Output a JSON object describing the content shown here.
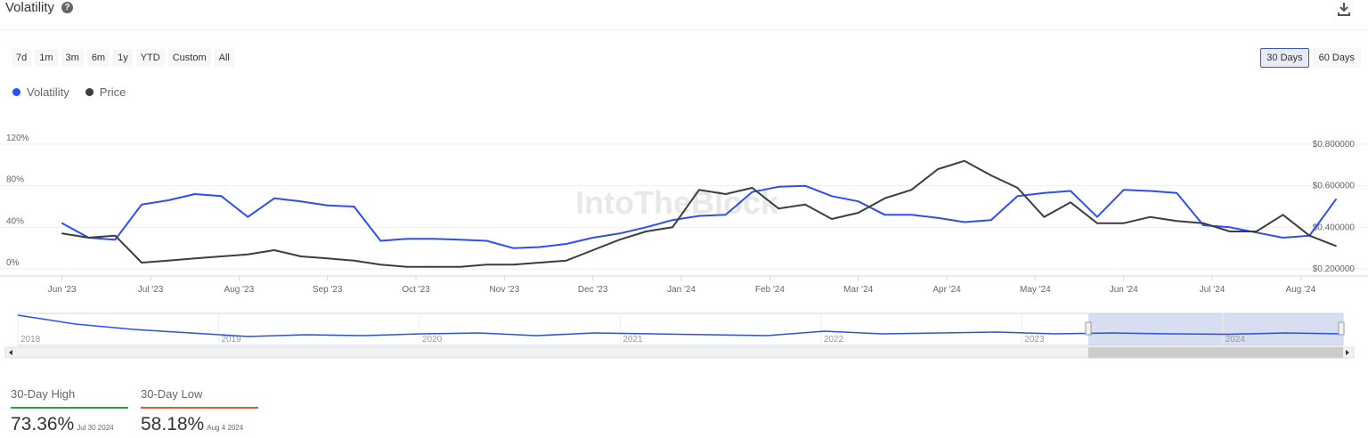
{
  "header": {
    "title": "Volatility",
    "help_icon": "question-circle-icon",
    "download_icon": "download-icon"
  },
  "range_buttons": [
    "7d",
    "1m",
    "3m",
    "6m",
    "1y",
    "YTD",
    "Custom",
    "All"
  ],
  "period_buttons": [
    {
      "label": "30 Days",
      "active": true
    },
    {
      "label": "60 Days",
      "active": false
    }
  ],
  "legend": [
    {
      "label": "Volatility",
      "color": "#2c4ef5"
    },
    {
      "label": "Price",
      "color": "#3d3d3d"
    }
  ],
  "colors": {
    "volatility": "#2c4ef5",
    "price": "#3d3d3d",
    "high": "#2ea043",
    "low": "#e05a36",
    "navigator_fill": "#ccd6eb"
  },
  "chart_data": {
    "type": "line",
    "x_tick_labels": [
      "Jun '23",
      "Jul '23",
      "Aug '23",
      "Sep '23",
      "Oct '23",
      "Nov '23",
      "Dec '23",
      "Jan '24",
      "Feb '24",
      "Mar '24",
      "Apr '24",
      "May '24",
      "Jun '24",
      "Jul '24",
      "Aug '24"
    ],
    "y_left": {
      "ticks": [
        "0%",
        "40%",
        "80%",
        "120%"
      ],
      "range": [
        0,
        120
      ]
    },
    "y_right": {
      "ticks": [
        "$0.200000",
        "$0.400000",
        "$0.600000",
        "$0.800000"
      ],
      "range": [
        0.2,
        0.8
      ]
    },
    "watermark": "IntoTheBlock",
    "grid": true,
    "legend_position": "top-left",
    "series": [
      {
        "name": "Volatility",
        "axis": "left",
        "x": [
          0,
          0.3,
          0.6,
          0.9,
          1.2,
          1.5,
          1.8,
          2.1,
          2.4,
          2.7,
          3.0,
          3.3,
          3.6,
          3.9,
          4.2,
          4.5,
          4.8,
          5.1,
          5.4,
          5.7,
          6.0,
          6.3,
          6.6,
          6.9,
          7.2,
          7.5,
          7.8,
          8.1,
          8.4,
          8.7,
          9.0,
          9.3,
          9.6,
          9.9,
          10.2,
          10.5,
          10.8,
          11.1,
          11.4,
          11.7,
          12.0,
          12.3,
          12.6,
          12.9,
          13.2,
          13.5,
          13.8,
          14.1,
          14.4
        ],
        "values": [
          44,
          30,
          28,
          62,
          66,
          72,
          70,
          50,
          68,
          65,
          61,
          60,
          27,
          29,
          29,
          28,
          27,
          20,
          21,
          24,
          30,
          34,
          40,
          47,
          51,
          52,
          74,
          79,
          80,
          70,
          65,
          52,
          52,
          49,
          45,
          47,
          70,
          73,
          75,
          50,
          76,
          75,
          73,
          42,
          40,
          35,
          30,
          32,
          67
        ]
      },
      {
        "name": "Price",
        "axis": "right",
        "x": [
          0,
          0.3,
          0.6,
          0.9,
          1.2,
          1.5,
          1.8,
          2.1,
          2.4,
          2.7,
          3.0,
          3.3,
          3.6,
          3.9,
          4.2,
          4.5,
          4.8,
          5.1,
          5.4,
          5.7,
          6.0,
          6.3,
          6.6,
          6.9,
          7.2,
          7.5,
          7.8,
          8.1,
          8.4,
          8.7,
          9.0,
          9.3,
          9.6,
          9.9,
          10.2,
          10.5,
          10.8,
          11.1,
          11.4,
          11.7,
          12.0,
          12.3,
          12.6,
          12.9,
          13.2,
          13.5,
          13.8,
          14.1,
          14.4
        ],
        "values": [
          0.37,
          0.35,
          0.36,
          0.23,
          0.24,
          0.25,
          0.26,
          0.27,
          0.29,
          0.26,
          0.25,
          0.24,
          0.22,
          0.21,
          0.21,
          0.21,
          0.22,
          0.22,
          0.23,
          0.24,
          0.29,
          0.34,
          0.38,
          0.4,
          0.58,
          0.56,
          0.59,
          0.49,
          0.51,
          0.44,
          0.47,
          0.54,
          0.58,
          0.68,
          0.72,
          0.65,
          0.59,
          0.45,
          0.52,
          0.42,
          0.42,
          0.45,
          0.43,
          0.42,
          0.38,
          0.38,
          0.46,
          0.36,
          0.31
        ]
      }
    ],
    "navigator": {
      "year_labels": [
        "2018",
        "2019",
        "2020",
        "2021",
        "2022",
        "2023",
        "2024"
      ],
      "values": [
        60,
        40,
        28,
        20,
        12,
        16,
        14,
        18,
        20,
        14,
        20,
        18,
        16,
        14,
        24,
        18,
        20,
        22,
        18,
        20,
        18,
        17,
        20,
        18
      ]
    },
    "stats": [
      {
        "label": "30-Day High",
        "value": "73.36%",
        "date": "Jul 30 2024"
      },
      {
        "label": "30-Day Low",
        "value": "58.18%",
        "date": "Aug 4 2024"
      }
    ]
  }
}
